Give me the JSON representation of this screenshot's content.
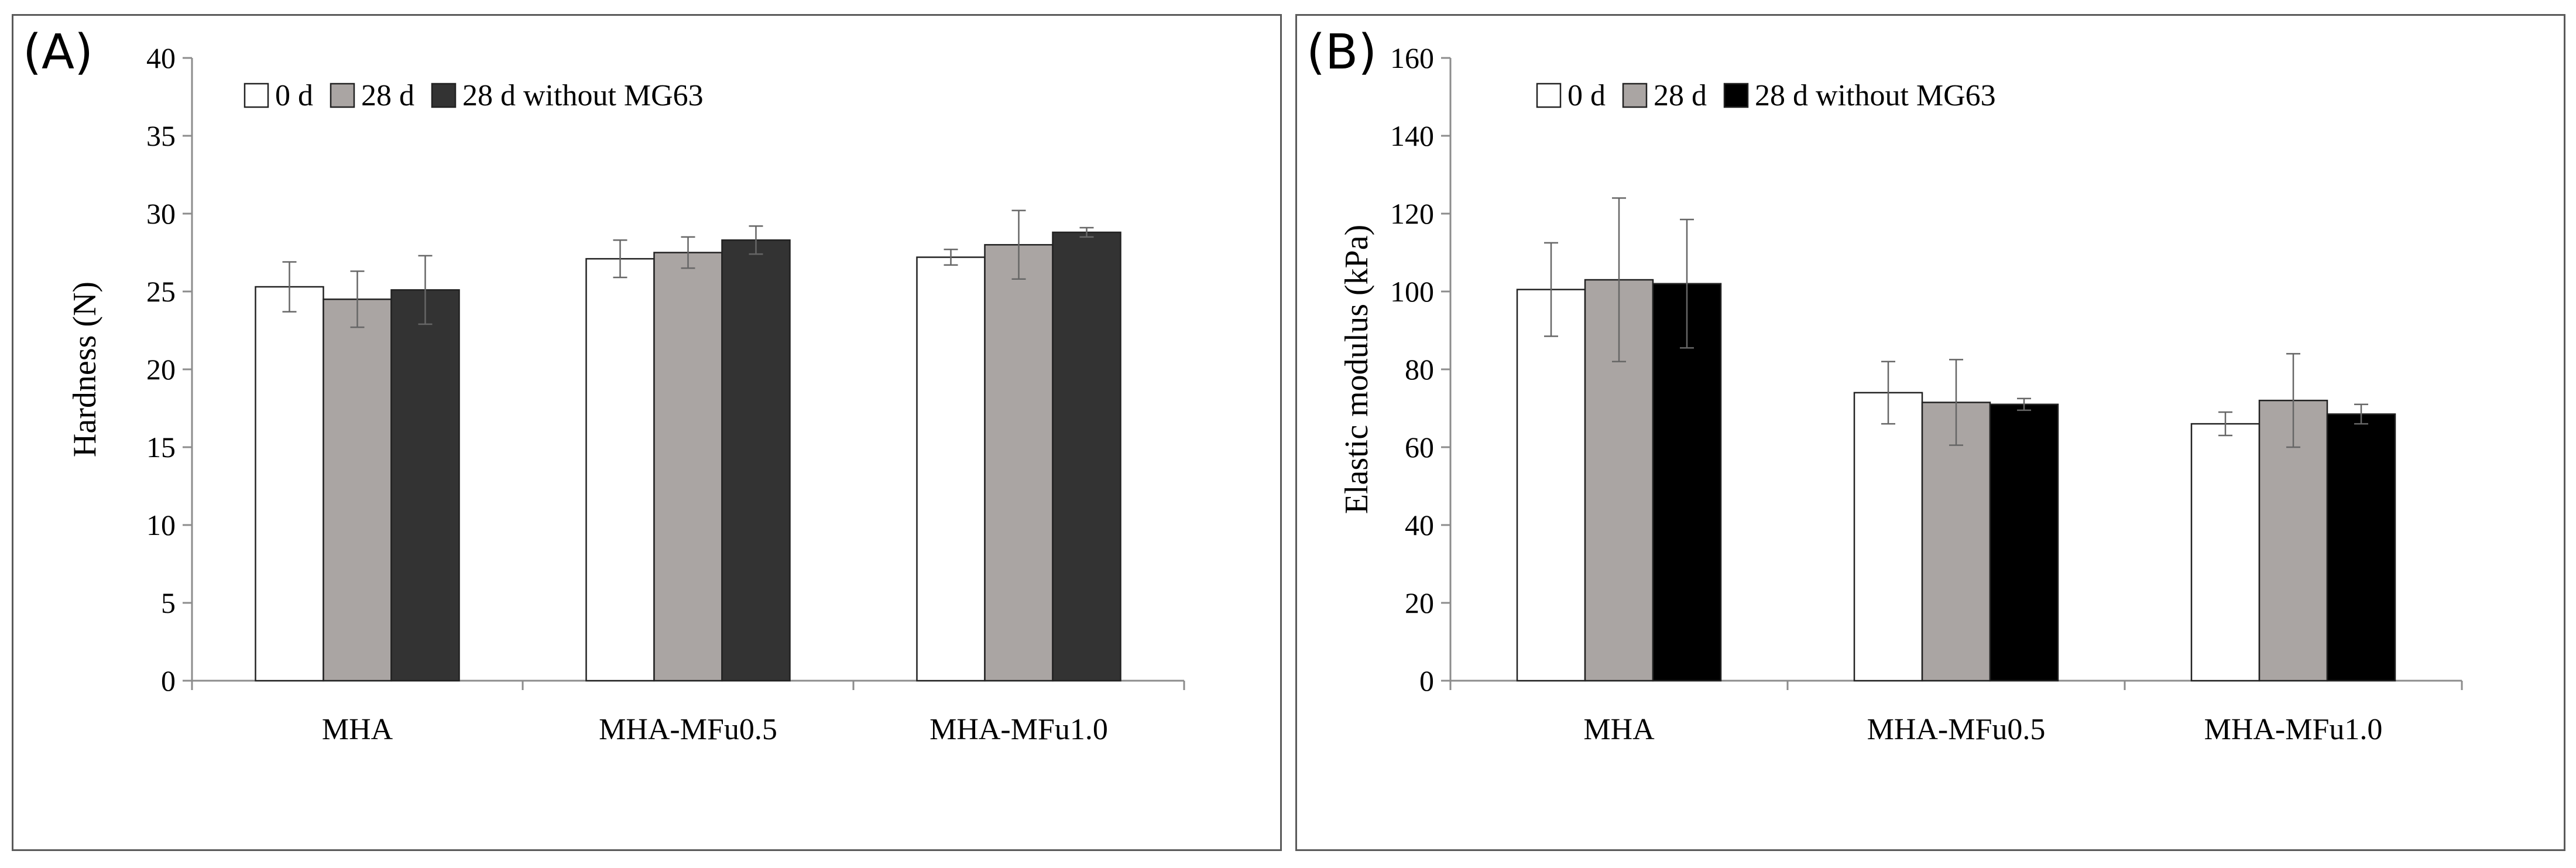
{
  "chart_data": [
    {
      "panel_label": "(A)",
      "type": "bar",
      "title": "",
      "xlabel": "",
      "ylabel": "Hardness (N)",
      "ylim": [
        0,
        40
      ],
      "yticks": [
        0,
        5,
        10,
        15,
        20,
        25,
        30,
        35,
        40
      ],
      "grid": false,
      "legend_position": "top-left",
      "categories": [
        "MHA",
        "MHA-MFu0.5",
        "MHA-MFu1.0"
      ],
      "series": [
        {
          "name": "0 d",
          "color": "#ffffff",
          "values": [
            25.3,
            27.1,
            27.2
          ],
          "errors": [
            1.6,
            1.2,
            0.5
          ]
        },
        {
          "name": "28 d",
          "color": "#aaa5a3",
          "values": [
            24.5,
            27.5,
            28.0
          ],
          "errors": [
            1.8,
            1.0,
            2.2
          ]
        },
        {
          "name": "28 d without MG63",
          "color": "#333333",
          "values": [
            25.1,
            28.3,
            28.8
          ],
          "errors": [
            2.2,
            0.9,
            0.3
          ]
        }
      ]
    },
    {
      "panel_label": "(B)",
      "type": "bar",
      "title": "",
      "xlabel": "",
      "ylabel": "Elastic modulus (kPa)",
      "ylim": [
        0,
        160
      ],
      "yticks": [
        0,
        20,
        40,
        60,
        80,
        100,
        120,
        140,
        160
      ],
      "grid": false,
      "legend_position": "top-left",
      "categories": [
        "MHA",
        "MHA-MFu0.5",
        "MHA-MFu1.0"
      ],
      "series": [
        {
          "name": "0 d",
          "color": "#ffffff",
          "values": [
            100.5,
            74.0,
            66.0
          ],
          "errors": [
            12.0,
            8.0,
            3.0
          ]
        },
        {
          "name": "28 d",
          "color": "#aaa5a3",
          "values": [
            103.0,
            71.5,
            72.0
          ],
          "errors": [
            21.0,
            11.0,
            12.0
          ]
        },
        {
          "name": "28 d without MG63",
          "color": "#000000",
          "values": [
            102.0,
            71.0,
            68.5
          ],
          "errors": [
            16.5,
            1.5,
            2.5
          ]
        }
      ]
    }
  ]
}
